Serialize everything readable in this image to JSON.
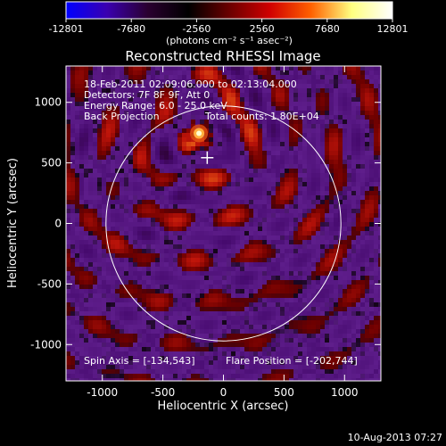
{
  "colorbar": {
    "ticks": [
      "-12801",
      "-7680",
      "-2560",
      "2560",
      "7680",
      "12801"
    ],
    "tick_values": [
      -12801,
      -7680,
      -2560,
      2560,
      7680,
      12801
    ],
    "range": [
      -12801,
      12801
    ],
    "label": "(photons cm⁻² s⁻¹ asec⁻²)",
    "colors": [
      "#0000ff",
      "#3a00b0",
      "#2a0030",
      "#000000",
      "#6a0000",
      "#d00000",
      "#ff6000",
      "#ffff80",
      "#ffffff"
    ]
  },
  "chart_data": {
    "type": "heatmap",
    "title": "Reconstructed RHESSI Image",
    "xlabel": "Heliocentric X (arcsec)",
    "ylabel": "Heliocentric Y (arcsec)",
    "xlim": [
      -1300,
      1300
    ],
    "ylim": [
      -1300,
      1300
    ],
    "xticks": [
      -1000,
      -500,
      0,
      500,
      1000
    ],
    "yticks": [
      -1000,
      -500,
      0,
      500,
      1000
    ],
    "xtick_labels": [
      "-1000",
      "-500",
      "0",
      "500",
      "1000"
    ],
    "ytick_labels": [
      "-1000",
      "-500",
      "0",
      "500",
      "1000"
    ],
    "solar_limb_radius": 970,
    "flare_peak": {
      "x": -202,
      "y": 744,
      "value": 12801
    },
    "spin_axis_marker": {
      "x": -134,
      "y": 543
    },
    "annotations": [
      "18-Feb-2011 02:09:06.000 to 02:13:04.000",
      "Detectors: 7F 8F 9F, Att 0",
      "Energy Range: 6.0 - 25.0 keV",
      "Back Projection",
      "Total counts: 1.80E+04"
    ],
    "footer_left": "Spin Axis = [-134,543]",
    "footer_right": "Flare Position = [-202,744]"
  },
  "timestamp": "10-Aug-2013 07:27"
}
